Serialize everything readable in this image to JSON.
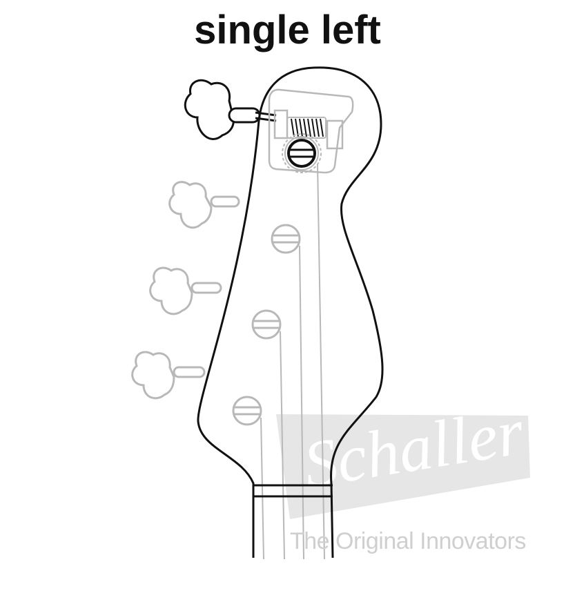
{
  "title": "single left",
  "watermark": {
    "brand": "Schaller",
    "tagline": "The Original Innovators"
  },
  "colors": {
    "active_outline": "#111111",
    "inactive_outline": "#b8b8b8",
    "watermark_fill": "#e3e3e3",
    "watermark_text": "#cfcfcf"
  }
}
